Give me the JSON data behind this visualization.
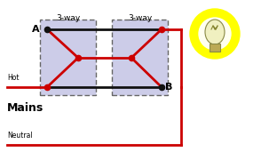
{
  "bg_color": "#ffffff",
  "switch_box_color": "#cccce8",
  "switch_box_edge": "#666666",
  "wire_black": "#111111",
  "wire_red": "#cc0000",
  "node_black": "#111111",
  "node_red": "#cc0000",
  "bulb_glow": "#ffff00",
  "bulb_glow2": "#ffffaa",
  "bulb_body": "#ddaa22",
  "label_A": "A",
  "label_B": "B",
  "label_hot": "Hot",
  "label_mains": "Mains",
  "label_neutral": "Neutral",
  "label_3way_1": "3-way",
  "label_3way_2": "3-way",
  "figw": 2.94,
  "figh": 1.71,
  "dpi": 100
}
